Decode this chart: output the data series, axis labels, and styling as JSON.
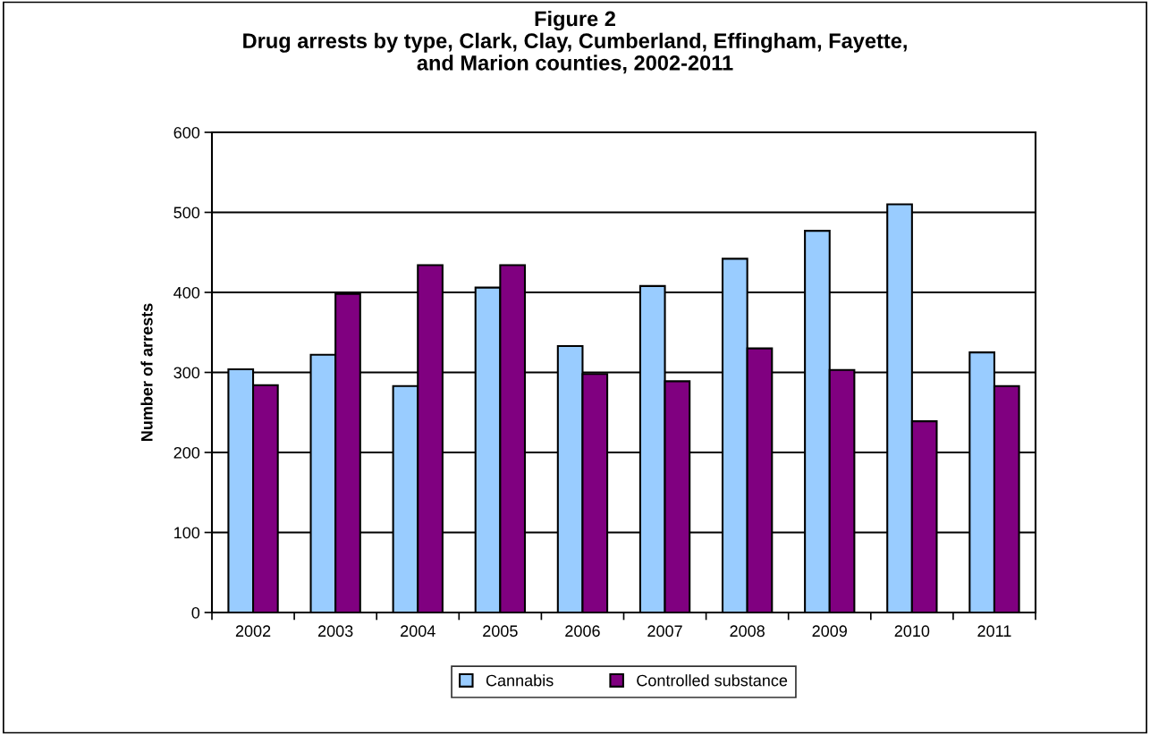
{
  "chart_data": {
    "type": "bar",
    "title": "Figure 2\nDrug arrests by type, Clark, Clay, Cumberland, Effingham, Fayette,\nand Marion counties, 2002-2011",
    "ylabel": "Number of arrests",
    "categories": [
      "2002",
      "2003",
      "2004",
      "2005",
      "2006",
      "2007",
      "2008",
      "2009",
      "2010",
      "2011"
    ],
    "series": [
      {
        "name": "Cannabis",
        "color": "#99ccff",
        "values": [
          304,
          322,
          283,
          406,
          333,
          408,
          442,
          477,
          510,
          325
        ]
      },
      {
        "name": "Controlled substance",
        "color": "#800080",
        "values": [
          284,
          398,
          434,
          434,
          298,
          289,
          330,
          303,
          239,
          283
        ]
      }
    ],
    "ylim": [
      0,
      600
    ],
    "yticks": [
      0,
      100,
      200,
      300,
      400,
      500,
      600
    ],
    "grid": "y",
    "legend": "bottom"
  }
}
